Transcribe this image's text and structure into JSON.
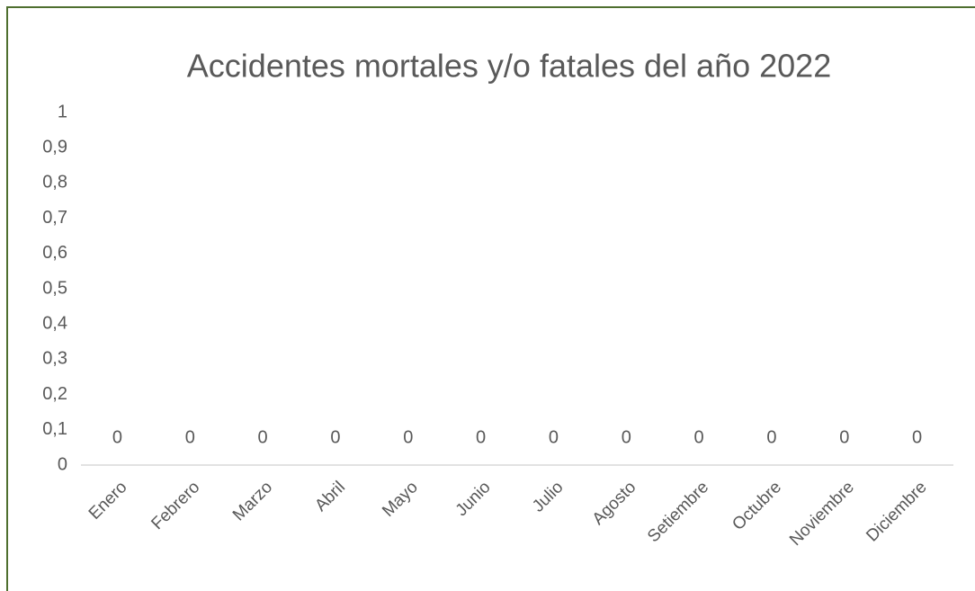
{
  "chart_data": {
    "type": "bar",
    "title": "Accidentes mortales y/o fatales del año 2022",
    "categories": [
      "Enero",
      "Febrero",
      "Marzo",
      "Abril",
      "Mayo",
      "Junio",
      "Julio",
      "Agosto",
      "Setiembre",
      "Octubre",
      "Noviembre",
      "Diciembre"
    ],
    "values": [
      0,
      0,
      0,
      0,
      0,
      0,
      0,
      0,
      0,
      0,
      0,
      0
    ],
    "color": "#4472c4",
    "ylim": [
      0,
      1
    ],
    "yticks": [
      0,
      {
        "value": 0.1,
        "label": "0,1"
      },
      {
        "value": 0.2,
        "label": "0,2"
      },
      {
        "value": 0.3,
        "label": "0,3"
      },
      {
        "value": 0.4,
        "label": "0,4"
      },
      {
        "value": 0.5,
        "label": "0,5"
      },
      {
        "value": 0.6,
        "label": "0,6"
      },
      {
        "value": 0.7,
        "label": "0,7"
      },
      {
        "value": 0.8,
        "label": "0,8"
      },
      {
        "value": 0.9,
        "label": "0,9"
      },
      1
    ],
    "grid": false
  }
}
